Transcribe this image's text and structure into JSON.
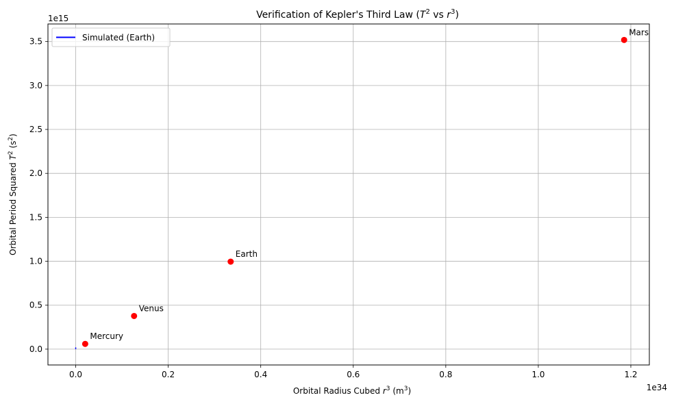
{
  "chart_data": {
    "type": "scatter",
    "title_main": "Verification of Kepler's Third Law (",
    "title_sym1": "T",
    "title_sup1": "2",
    "title_vs": " vs ",
    "title_sym2": "r",
    "title_sup2": "3",
    "title_close": ")",
    "xlabel_main": "Orbital Radius Cubed ",
    "xlabel_sym": "r",
    "xlabel_sup": "3",
    "xlabel_unit": " (m",
    "xlabel_unit_sup": "3",
    "xlabel_unit_close": ")",
    "ylabel_main": "Orbital Period Squared ",
    "ylabel_sym": "T",
    "ylabel_sup": "2",
    "ylabel_unit": " (s",
    "ylabel_unit_sup": "2",
    "ylabel_unit_close": ")",
    "x_offset_label": "1e34",
    "y_offset_label": "1e15",
    "x_scale": 1e+34,
    "y_scale": 1000000000000000.0,
    "xlim": [
      -0.06,
      1.24
    ],
    "ylim": [
      -0.18,
      3.7
    ],
    "x_ticks": [
      0.0,
      0.2,
      0.4,
      0.6,
      0.8,
      1.0,
      1.2
    ],
    "x_tick_labels": [
      "0.0",
      "0.2",
      "0.4",
      "0.6",
      "0.8",
      "1.0",
      "1.2"
    ],
    "y_ticks": [
      0.0,
      0.5,
      1.0,
      1.5,
      2.0,
      2.5,
      3.0,
      3.5
    ],
    "y_tick_labels": [
      "0.0",
      "0.5",
      "1.0",
      "1.5",
      "2.0",
      "2.5",
      "3.0",
      "3.5"
    ],
    "grid": true,
    "legend_position": "upper-left",
    "legend_entries": [
      {
        "name": "Simulated (Earth)",
        "color": "#0000ff",
        "style": "line"
      }
    ],
    "simulated_series": {
      "name": "Simulated (Earth)",
      "color": "#0000ff",
      "x": [
        0.0,
        0.0
      ],
      "y": [
        0.0,
        0.02
      ]
    },
    "points_color": "#ff0000",
    "points": [
      {
        "label": "Mercury",
        "x": 0.0205,
        "y": 0.0597
      },
      {
        "label": "Venus",
        "x": 0.1262,
        "y": 0.3774
      },
      {
        "label": "Earth",
        "x": 0.335,
        "y": 0.9958
      },
      {
        "label": "Mars",
        "x": 1.1855,
        "y": 3.518
      }
    ]
  }
}
